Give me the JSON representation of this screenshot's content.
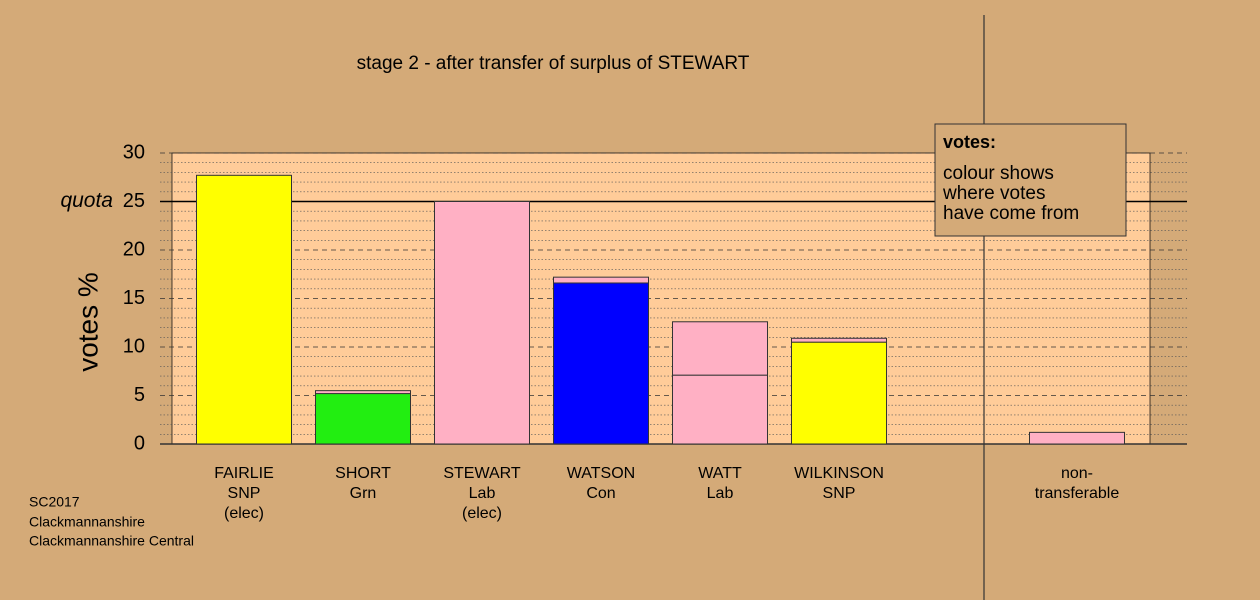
{
  "chart_data": {
    "type": "stacked-bar",
    "title": "stage 2 - after transfer of surplus of STEWART",
    "y_label": "votes %",
    "ylim": [
      0,
      30
    ],
    "yticks": [
      0,
      5,
      10,
      15,
      20,
      25,
      30
    ],
    "yminorticks": [
      1,
      2,
      3,
      4,
      6,
      7,
      8,
      9,
      11,
      12,
      13,
      14,
      16,
      17,
      18,
      19,
      21,
      22,
      23,
      24,
      26,
      27,
      28,
      29
    ],
    "quota": 25,
    "quota_label": "quota",
    "categories": [
      [
        "FAIRLIE",
        "SNP",
        "(elec)"
      ],
      [
        "SHORT",
        "Grn"
      ],
      [
        "STEWART",
        "Lab",
        "(elec)"
      ],
      [
        "WATSON",
        "Con"
      ],
      [
        "WATT",
        "Lab"
      ],
      [
        "WILKINSON",
        "SNP"
      ],
      [
        "non-",
        "transferable"
      ]
    ],
    "bars": [
      [
        {
          "color": "#ffff00",
          "value": 27.7
        }
      ],
      [
        {
          "color": "#22ee11",
          "value": 5.2
        },
        {
          "color": "#ffb0c4",
          "value": 0.3
        }
      ],
      [
        {
          "color": "#ffb0c4",
          "value": 25.0
        }
      ],
      [
        {
          "color": "#0000ff",
          "value": 16.6
        },
        {
          "color": "#ffb0c4",
          "value": 0.6
        }
      ],
      [
        {
          "color": "#ffb0c4",
          "value": 7.1
        },
        {
          "color": "#ffb0c4",
          "value": 5.5
        }
      ],
      [
        {
          "color": "#ffff00",
          "value": 10.5
        },
        {
          "color": "#ffb0c4",
          "value": 0.4
        }
      ],
      [
        {
          "color": "#ffb0c4",
          "value": 1.2
        }
      ]
    ],
    "legend": {
      "title": "votes:",
      "lines": [
        "colour shows",
        "where votes",
        "have come from"
      ]
    },
    "footer": [
      "SC2017",
      "Clackmannanshire",
      "Clackmannanshire Central"
    ]
  }
}
